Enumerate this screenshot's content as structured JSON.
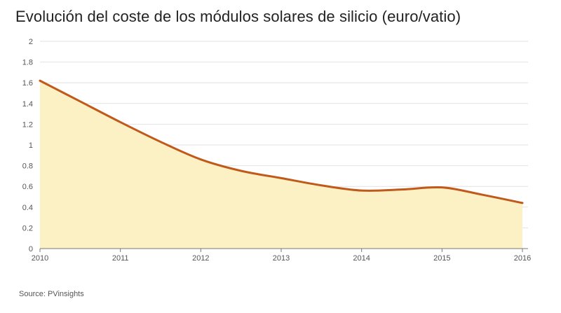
{
  "title": "Evolución del coste de los módulos solares de silicio (euro/vatio)",
  "source": "Source: PVinsights",
  "colors": {
    "line": "#c0591a",
    "area": "#fcf1c4",
    "grid": "#e2e2e2",
    "axis": "#777777"
  },
  "chart_data": {
    "type": "area",
    "title": "Evolución del coste de los módulos solares de silicio (euro/vatio)",
    "xlabel": "",
    "ylabel": "",
    "x": [
      2010,
      2010.5,
      2011,
      2011.5,
      2012,
      2012.5,
      2013,
      2013.5,
      2014,
      2014.5,
      2015,
      2015.5,
      2016
    ],
    "series": [
      {
        "values": [
          1.62,
          1.42,
          1.22,
          1.03,
          0.86,
          0.75,
          0.68,
          0.61,
          0.56,
          0.57,
          0.59,
          0.52,
          0.44
        ]
      }
    ],
    "xticks": [
      "2010",
      "2011",
      "2012",
      "2013",
      "2014",
      "2015",
      "2016"
    ],
    "yticks": [
      "0",
      "0.2",
      "0.4",
      "0.6",
      "0.8",
      "1",
      "1.2",
      "1.4",
      "1.6",
      "1.8",
      "2"
    ],
    "xlim": [
      2010,
      2016
    ],
    "ylim": [
      0,
      2
    ],
    "grid": true,
    "legend": "none"
  }
}
